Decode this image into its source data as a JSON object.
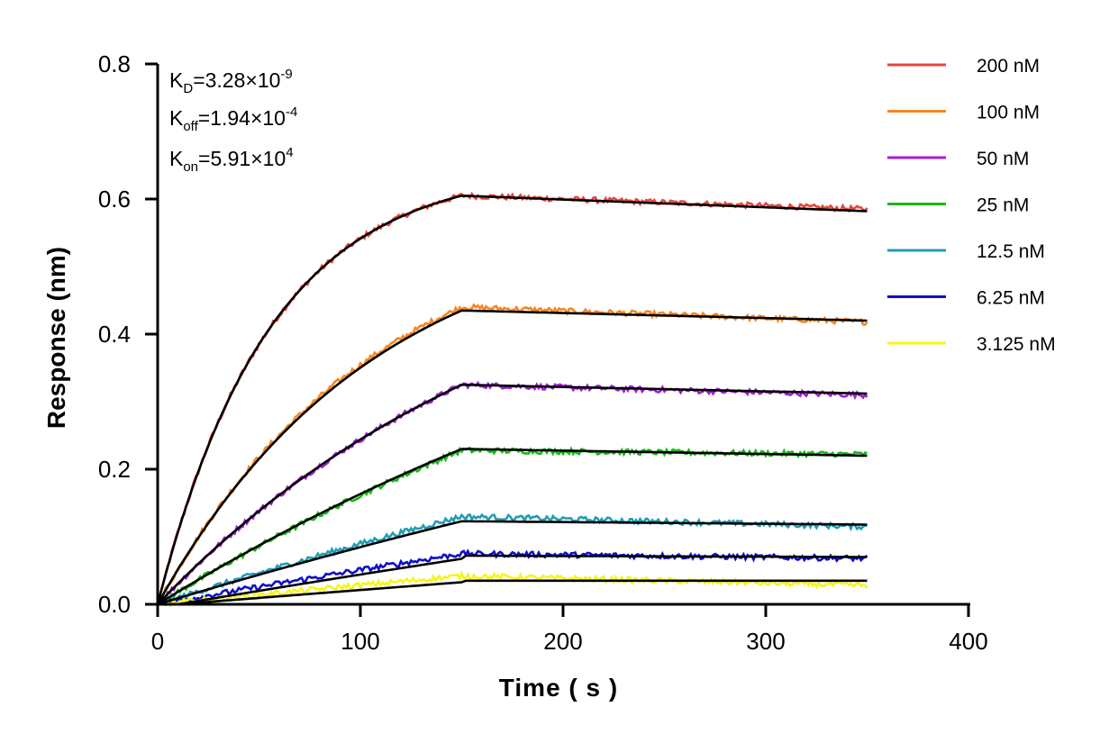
{
  "chart_data": {
    "type": "line",
    "title": "",
    "xlabel": "Time ( s )",
    "ylabel": "Response (nm)",
    "xlim": [
      0,
      400
    ],
    "ylim": [
      0,
      0.8
    ],
    "x_ticks": [
      0,
      100,
      200,
      300,
      400
    ],
    "x_tick_labels": [
      "0",
      "100",
      "200",
      "300",
      "400"
    ],
    "y_ticks": [
      0.0,
      0.2,
      0.4,
      0.6,
      0.8
    ],
    "y_tick_labels": [
      "0.0",
      "0.2",
      "0.4",
      "0.6",
      "0.8"
    ],
    "grid": false,
    "legend_position": "right",
    "association_end_s": 150,
    "end_s": 350,
    "annotations": {
      "kd": {
        "base": "K",
        "sub": "D",
        "value": "=3.28×10",
        "sup": "-9"
      },
      "koff": {
        "base": "K",
        "sub": "off",
        "value": "=1.94×10",
        "sup": "-4"
      },
      "kon": {
        "base": "K",
        "sub": "on",
        "value": "=5.91×10",
        "sup": "4"
      }
    },
    "fit_color": "#000000",
    "series": [
      {
        "name": "200 nM",
        "color": "#e8463c",
        "peak": 0.605,
        "end": 0.585,
        "fit_peak": 0.605,
        "fit_end": 0.582,
        "shape": 1.35
      },
      {
        "name": "100 nM",
        "color": "#f7861e",
        "peak": 0.44,
        "end": 0.418,
        "fit_peak": 0.435,
        "fit_end": 0.42,
        "shape": 0.7
      },
      {
        "name": "50 nM",
        "color": "#a21fd4",
        "peak": 0.325,
        "end": 0.31,
        "fit_peak": 0.325,
        "fit_end": 0.312,
        "shape": 0.4
      },
      {
        "name": "25 nM",
        "color": "#19b719",
        "peak": 0.228,
        "end": 0.222,
        "fit_peak": 0.23,
        "fit_end": 0.22,
        "shape": 0.2
      },
      {
        "name": "12.5 nM",
        "color": "#1f9db5",
        "peak": 0.13,
        "end": 0.115,
        "fit_peak": 0.123,
        "fit_end": 0.118,
        "shape": 0.1
      },
      {
        "name": "6.25 nM",
        "color": "#1010c8",
        "peak": 0.075,
        "end": 0.068,
        "fit_peak": 0.072,
        "fit_end": 0.07,
        "shape": 0.05
      },
      {
        "name": "3.125 nM",
        "color": "#f5f51e",
        "peak": 0.042,
        "end": 0.028,
        "fit_peak": 0.035,
        "fit_end": 0.035,
        "shape": 0.02
      }
    ]
  }
}
